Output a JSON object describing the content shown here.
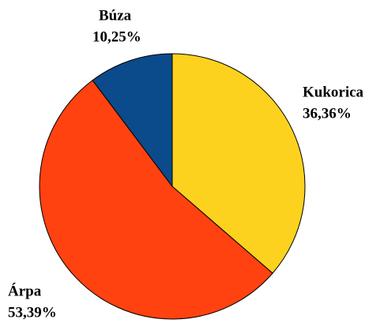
{
  "chart_data": {
    "type": "pie",
    "categories": [
      "Kukorica",
      "Árpa",
      "Búza"
    ],
    "values": [
      36.36,
      53.39,
      10.25
    ],
    "value_labels": [
      "36,36%",
      "53,39%",
      "10,25%"
    ],
    "colors": [
      "#fdd21f",
      "#ff4210",
      "#0b4a8b"
    ]
  }
}
